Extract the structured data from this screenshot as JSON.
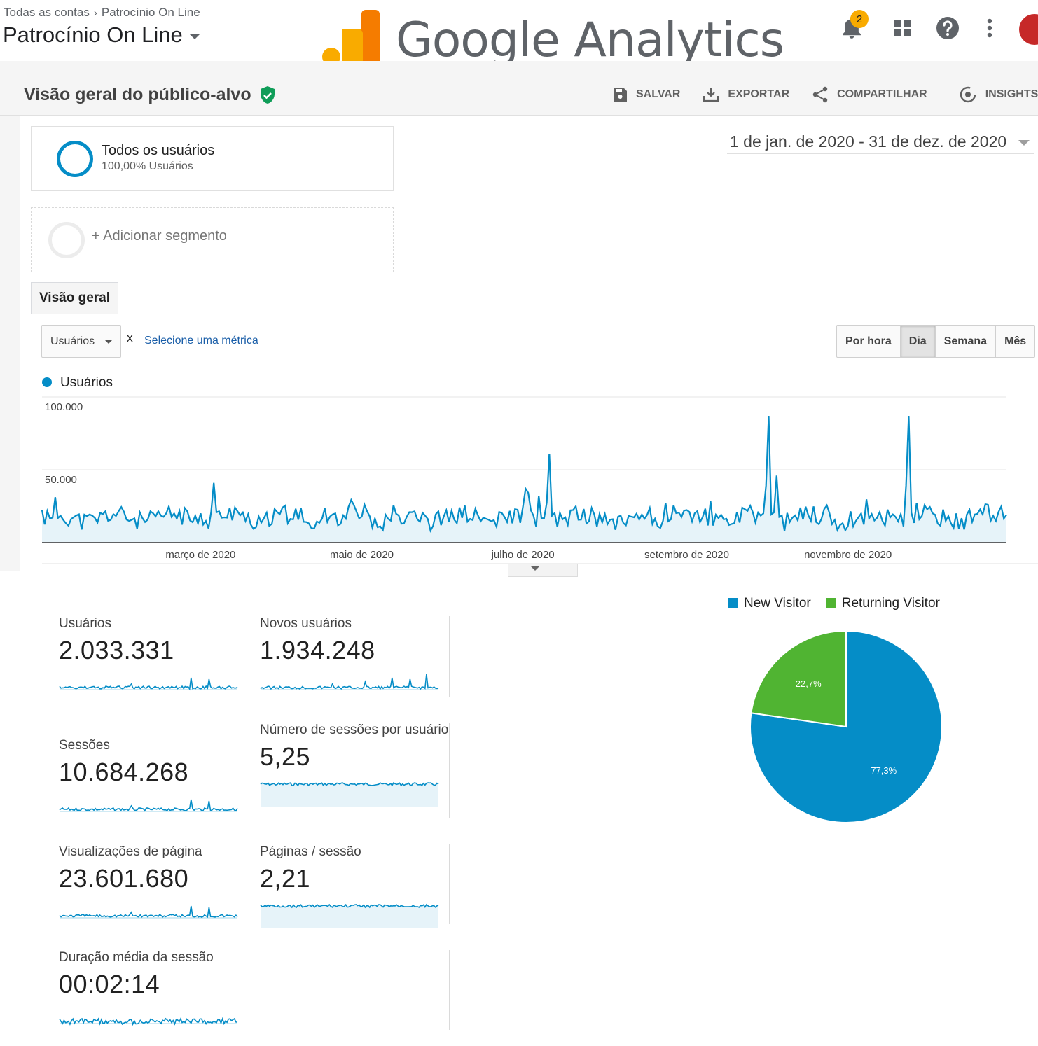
{
  "header": {
    "breadcrumb": [
      "Todas as contas",
      "Patrocínio On Line"
    ],
    "property": "Patrocínio On Line",
    "logo_text": "Google Analytics",
    "notification_count": "2"
  },
  "report": {
    "title": "Visão geral do público-alvo",
    "actions": [
      "SALVAR",
      "EXPORTAR",
      "COMPARTILHAR",
      "INSIGHTS"
    ]
  },
  "segments": {
    "primary_name": "Todos os usuários",
    "primary_sub": "100,00% Usuários",
    "add_label": "+ Adicionar segmento"
  },
  "date_range": "1 de jan. de 2020 - 31 de dez. de 2020",
  "tabs": [
    "Visão geral"
  ],
  "controls": {
    "metric": "Usuários",
    "x": "X",
    "select_metric": "Selecione uma métrica",
    "granularity": [
      "Por hora",
      "Dia",
      "Semana",
      "Mês"
    ],
    "active_granularity": "Dia"
  },
  "colors": {
    "accent": "#058dc7",
    "returning": "#50b432",
    "area": "#e6f3f9"
  },
  "chart_data": [
    {
      "type": "area",
      "series_name": "Usuários",
      "y_ticks": [
        "100.000",
        "50.000"
      ],
      "ylim": [
        0,
        100000
      ],
      "x_ticks": [
        "março de 2020",
        "maio de 2020",
        "julho de 2020",
        "setembro de 2020",
        "novembro de 2020"
      ],
      "baseline": 15000,
      "spikes": [
        {
          "day": 65,
          "value": 41000
        },
        {
          "day": 183,
          "value": 37000
        },
        {
          "day": 192,
          "value": 61000
        },
        {
          "day": 275,
          "value": 87000
        },
        {
          "day": 278,
          "value": 46000
        },
        {
          "day": 328,
          "value": 87000
        }
      ]
    },
    {
      "type": "pie",
      "legend": [
        "New Visitor",
        "Returning Visitor"
      ],
      "values": [
        77.3,
        22.7
      ],
      "labels": [
        "77,3%",
        "22,7%"
      ]
    }
  ],
  "scorecards": [
    {
      "label": "Usuários",
      "value": "2.033.331"
    },
    {
      "label": "Novos usuários",
      "value": "1.934.248"
    },
    {
      "label": "Sessões",
      "value": "10.684.268"
    },
    {
      "label": "Número de sessões por usuário",
      "value": "5,25"
    },
    {
      "label": "Visualizações de página",
      "value": "23.601.680"
    },
    {
      "label": "Páginas / sessão",
      "value": "2,21"
    },
    {
      "label": "Duração média da sessão",
      "value": "00:02:14"
    }
  ]
}
